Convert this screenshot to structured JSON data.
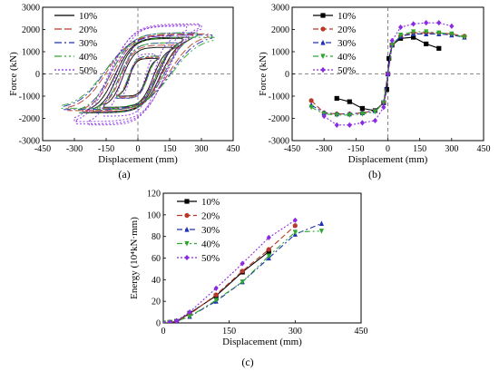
{
  "chart_data": [
    {
      "id": "a",
      "panel_label": "(a)",
      "type": "line",
      "subtype": "hysteresis",
      "xlabel": "Displacement (mm)",
      "ylabel": "Force (kN)",
      "xlim": [
        -450,
        450
      ],
      "ylim": [
        -3000,
        3000
      ],
      "xticks": [
        "-450",
        "-300",
        "-150",
        "0",
        "150",
        "300",
        "450"
      ],
      "yticks": [
        "-3000",
        "-2000",
        "-1000",
        "0",
        "1000",
        "2000",
        "3000"
      ],
      "grid": false,
      "legend_position": "top-left",
      "series": [
        {
          "name": "10%",
          "color": "#000000",
          "dash": "",
          "loops": [
            [
              90,
              700,
              -1000
            ],
            [
              160,
              1200,
              -1500
            ],
            [
              210,
              1600,
              -1700
            ],
            [
              240,
              1650,
              -1750
            ]
          ]
        },
        {
          "name": "20%",
          "color": "#b8392a",
          "dash": "8,3",
          "loops": [
            [
              100,
              750,
              -1050
            ],
            [
              180,
              1300,
              -1550
            ],
            [
              260,
              1750,
              -1700
            ],
            [
              330,
              1800,
              -1650
            ]
          ]
        },
        {
          "name": "30%",
          "color": "#2030b0",
          "dash": "8,3,2,3",
          "loops": [
            [
              100,
              800,
              -1100
            ],
            [
              190,
              1400,
              -1600
            ],
            [
              280,
              1850,
              -1750
            ],
            [
              350,
              1750,
              -1600
            ]
          ]
        },
        {
          "name": "40%",
          "color": "#2ea82e",
          "dash": "8,3,2,3,2,3",
          "loops": [
            [
              100,
              800,
              -1100
            ],
            [
              190,
              1400,
              -1600
            ],
            [
              280,
              1850,
              -1750
            ],
            [
              360,
              1650,
              -1550
            ]
          ]
        },
        {
          "name": "50%",
          "color": "#8a2be2",
          "dash": "2,2",
          "loops": [
            [
              80,
              900,
              -1100
            ],
            [
              160,
              1700,
              -1900
            ],
            [
              230,
              2150,
              -2300
            ],
            [
              290,
              2250,
              -2250
            ],
            [
              300,
              2200,
              -2150
            ]
          ]
        }
      ]
    },
    {
      "id": "b",
      "panel_label": "(b)",
      "type": "line",
      "subtype": "skeleton",
      "xlabel": "Displacement (mm)",
      "ylabel": "Force (kN)",
      "xlim": [
        -450,
        450
      ],
      "ylim": [
        -3000,
        3000
      ],
      "xticks": [
        "-450",
        "-300",
        "-150",
        "0",
        "150",
        "300",
        "450"
      ],
      "yticks": [
        "-3000",
        "-2000",
        "-1000",
        "0",
        "1000",
        "2000",
        "3000"
      ],
      "grid": false,
      "legend_position": "top-right",
      "series": [
        {
          "name": "10%",
          "color": "#000000",
          "dash": "",
          "marker": "square",
          "points": [
            [
              -240,
              -1100
            ],
            [
              -180,
              -1250
            ],
            [
              -120,
              -1550
            ],
            [
              -60,
              -1650
            ],
            [
              -20,
              -1300
            ],
            [
              -5,
              -700
            ],
            [
              0,
              0
            ],
            [
              5,
              700
            ],
            [
              20,
              1300
            ],
            [
              60,
              1600
            ],
            [
              120,
              1650
            ],
            [
              180,
              1350
            ],
            [
              240,
              1150
            ]
          ]
        },
        {
          "name": "20%",
          "color": "#b8392a",
          "dash": "6,3",
          "marker": "circle",
          "points": [
            [
              -360,
              -1200
            ],
            [
              -300,
              -1750
            ],
            [
              -240,
              -1800
            ],
            [
              -180,
              -1800
            ],
            [
              -120,
              -1750
            ],
            [
              -60,
              -1650
            ],
            [
              -20,
              -1300
            ],
            [
              0,
              0
            ],
            [
              20,
              1300
            ],
            [
              60,
              1700
            ],
            [
              120,
              1850
            ],
            [
              180,
              1850
            ],
            [
              240,
              1850
            ],
            [
              300,
              1800
            ],
            [
              360,
              1700
            ]
          ]
        },
        {
          "name": "30%",
          "color": "#2030b0",
          "dash": "6,3,2,3",
          "marker": "triangle",
          "points": [
            [
              -360,
              -1400
            ],
            [
              -300,
              -1750
            ],
            [
              -240,
              -1800
            ],
            [
              -180,
              -1800
            ],
            [
              -120,
              -1750
            ],
            [
              -60,
              -1650
            ],
            [
              -20,
              -1300
            ],
            [
              0,
              0
            ],
            [
              20,
              1300
            ],
            [
              60,
              1700
            ],
            [
              120,
              1800
            ],
            [
              180,
              1800
            ],
            [
              240,
              1800
            ],
            [
              300,
              1750
            ],
            [
              360,
              1650
            ]
          ]
        },
        {
          "name": "40%",
          "color": "#2ea82e",
          "dash": "6,3,2,3,2,3",
          "marker": "triangle-down",
          "points": [
            [
              -360,
              -1500
            ],
            [
              -300,
              -1800
            ],
            [
              -240,
              -1850
            ],
            [
              -180,
              -1850
            ],
            [
              -120,
              -1800
            ],
            [
              -60,
              -1700
            ],
            [
              -20,
              -1300
            ],
            [
              0,
              0
            ],
            [
              20,
              1300
            ],
            [
              60,
              1750
            ],
            [
              120,
              1900
            ],
            [
              180,
              1900
            ],
            [
              240,
              1850
            ],
            [
              300,
              1800
            ],
            [
              360,
              1650
            ]
          ]
        },
        {
          "name": "50%",
          "color": "#8a2be2",
          "dash": "2,2",
          "marker": "diamond",
          "points": [
            [
              -300,
              -1900
            ],
            [
              -240,
              -2300
            ],
            [
              -180,
              -2300
            ],
            [
              -120,
              -2200
            ],
            [
              -60,
              -2100
            ],
            [
              -20,
              -1500
            ],
            [
              0,
              0
            ],
            [
              20,
              1500
            ],
            [
              60,
              2100
            ],
            [
              120,
              2250
            ],
            [
              180,
              2300
            ],
            [
              240,
              2300
            ],
            [
              300,
              2150
            ]
          ]
        }
      ]
    },
    {
      "id": "c",
      "panel_label": "(c)",
      "type": "line",
      "subtype": "energy",
      "xlabel": "Displacement (mm)",
      "ylabel": "Energy (10⁴kN·mm)",
      "xlim": [
        0,
        450
      ],
      "ylim": [
        0,
        120
      ],
      "xticks": [
        "0",
        "150",
        "300",
        "450"
      ],
      "yticks": [
        "0",
        "20",
        "40",
        "60",
        "80",
        "100",
        "120"
      ],
      "grid": false,
      "legend_position": "top-left",
      "series": [
        {
          "name": "10%",
          "color": "#000000",
          "dash": "",
          "marker": "square",
          "points": [
            [
              0,
              0
            ],
            [
              15,
              0.5
            ],
            [
              30,
              1.5
            ],
            [
              60,
              9
            ],
            [
              120,
              25
            ],
            [
              180,
              47
            ],
            [
              240,
              66
            ]
          ]
        },
        {
          "name": "20%",
          "color": "#b8392a",
          "dash": "6,3",
          "marker": "circle",
          "points": [
            [
              0,
              0
            ],
            [
              15,
              0.5
            ],
            [
              30,
              1.5
            ],
            [
              60,
              8
            ],
            [
              120,
              26
            ],
            [
              180,
              48
            ],
            [
              240,
              68
            ],
            [
              300,
              90
            ]
          ]
        },
        {
          "name": "30%",
          "color": "#2030b0",
          "dash": "6,3,2,3",
          "marker": "triangle",
          "points": [
            [
              0,
              0
            ],
            [
              15,
              0.5
            ],
            [
              30,
              1.5
            ],
            [
              60,
              6
            ],
            [
              120,
              20
            ],
            [
              180,
              38
            ],
            [
              240,
              60
            ],
            [
              300,
              82
            ],
            [
              360,
              92
            ]
          ]
        },
        {
          "name": "40%",
          "color": "#2ea82e",
          "dash": "6,3,2,3,2,3",
          "marker": "triangle-down",
          "points": [
            [
              0,
              0
            ],
            [
              15,
              0.5
            ],
            [
              30,
              1.5
            ],
            [
              60,
              6
            ],
            [
              120,
              21
            ],
            [
              180,
              38
            ],
            [
              240,
              62
            ],
            [
              300,
              84
            ],
            [
              360,
              85
            ]
          ]
        },
        {
          "name": "50%",
          "color": "#8a2be2",
          "dash": "2,2",
          "marker": "diamond",
          "points": [
            [
              0,
              0
            ],
            [
              15,
              0.5
            ],
            [
              30,
              2
            ],
            [
              60,
              10
            ],
            [
              120,
              32
            ],
            [
              180,
              55
            ],
            [
              240,
              79
            ],
            [
              300,
              95
            ]
          ]
        }
      ]
    }
  ]
}
